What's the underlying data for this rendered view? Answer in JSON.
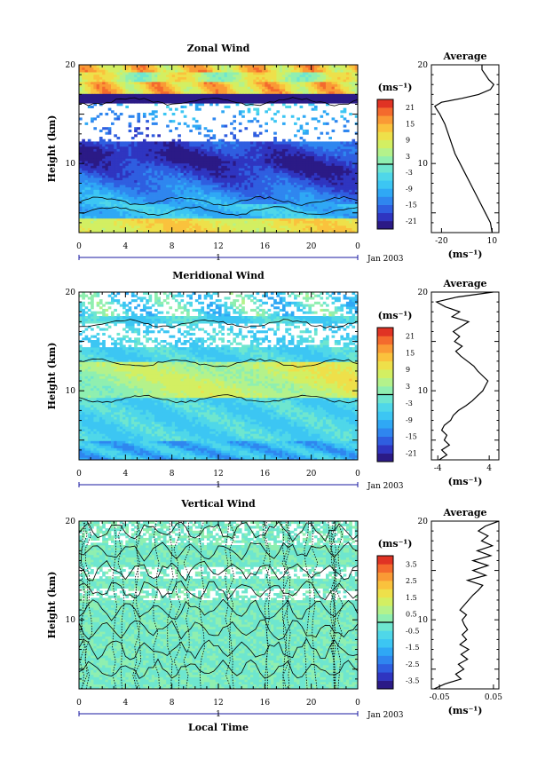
{
  "chart_data": [
    {
      "type": "heatmap",
      "title": "Zonal Wind",
      "ylabel": "Height (km)",
      "units": "(ms⁻¹)",
      "x_ticks": [
        "0",
        "4",
        "8",
        "12",
        "16",
        "20",
        "0"
      ],
      "y_ticks": [
        "10",
        "20"
      ],
      "xlim": [
        0,
        24
      ],
      "ylim": [
        3,
        20
      ],
      "day_label": "1",
      "date_label": "Jan 2003",
      "colorbar_ticks": [
        "21",
        "15",
        "9",
        "3",
        "-3",
        "-9",
        "-15",
        "-21"
      ],
      "colorbar_range": [
        -24,
        24
      ],
      "profile": {
        "title": "Average",
        "xlabel": "(ms⁻¹)",
        "x_ticks": [
          "-20",
          "10"
        ],
        "xlim": [
          -26,
          14
        ],
        "y_ticks": [
          "10",
          "20"
        ],
        "height": [
          3,
          4,
          5,
          6,
          7,
          8,
          9,
          10,
          11,
          12,
          13,
          14,
          15,
          15.8,
          16.2,
          16.6,
          17,
          17.5,
          18,
          18.5,
          19,
          19.5,
          20
        ],
        "value": [
          10,
          9,
          6,
          3,
          0,
          -3,
          -6,
          -9,
          -12,
          -14,
          -16,
          -18,
          -21,
          -24,
          -20,
          -8,
          2,
          9,
          11,
          8,
          6,
          4,
          4
        ]
      }
    },
    {
      "type": "heatmap",
      "title": "Meridional Wind",
      "ylabel": "Height (km)",
      "units": "(ms⁻¹)",
      "x_ticks": [
        "0",
        "4",
        "8",
        "12",
        "16",
        "20",
        "0"
      ],
      "y_ticks": [
        "10",
        "20"
      ],
      "xlim": [
        0,
        24
      ],
      "ylim": [
        3,
        20
      ],
      "day_label": "1",
      "date_label": "Jan 2003",
      "colorbar_ticks": [
        "21",
        "15",
        "9",
        "3",
        "-3",
        "-9",
        "-15",
        "-21"
      ],
      "colorbar_range": [
        -24,
        24
      ],
      "profile": {
        "title": "Average",
        "xlabel": "(ms⁻¹)",
        "x_ticks": [
          "-4",
          "4"
        ],
        "xlim": [
          -5,
          5.5
        ],
        "y_ticks": [
          "10",
          "20"
        ],
        "height": [
          3,
          3.5,
          4,
          4.5,
          5,
          5.5,
          6,
          6.5,
          7,
          7.5,
          8,
          8.5,
          9,
          9.5,
          10,
          10.5,
          11,
          11.5,
          12,
          12.5,
          13,
          13.5,
          14,
          14.5,
          15,
          15.5,
          16,
          16.5,
          17,
          17.5,
          18,
          18.5,
          19,
          19.5,
          20
        ],
        "value": [
          -3.8,
          -2.6,
          -3.4,
          -2.2,
          -3.0,
          -2.6,
          -3.4,
          -3.0,
          -2.0,
          -1.6,
          -0.8,
          0.4,
          1.4,
          2.2,
          3.0,
          3.4,
          3.8,
          3.0,
          2.2,
          1.6,
          0.6,
          -0.4,
          -1.2,
          -0.2,
          -1.4,
          -0.6,
          -1.6,
          -0.4,
          0.8,
          -1.8,
          -0.6,
          -2.8,
          -4.2,
          -1.0,
          4.6
        ]
      }
    },
    {
      "type": "heatmap",
      "title": "Vertical Wind",
      "xlabel": "Local Time",
      "ylabel": "Height (km)",
      "units": "(ms⁻¹)",
      "x_ticks": [
        "0",
        "4",
        "8",
        "12",
        "16",
        "20",
        "0"
      ],
      "y_ticks": [
        "10",
        "20"
      ],
      "xlim": [
        0,
        24
      ],
      "ylim": [
        3,
        20
      ],
      "day_label": "1",
      "date_label": "Jan 2003",
      "colorbar_ticks": [
        "3.5",
        "2.5",
        "1.5",
        "0.5",
        "-0.5",
        "-1.5",
        "-2.5",
        "-3.5"
      ],
      "colorbar_range": [
        -4,
        4
      ],
      "profile": {
        "title": "Average",
        "xlabel": "(ms⁻¹)",
        "x_ticks": [
          "-0.05",
          "0.05"
        ],
        "xlim": [
          -0.065,
          0.06
        ],
        "y_ticks": [
          "10",
          "20"
        ],
        "height": [
          3,
          3.5,
          4,
          4.5,
          5,
          5.5,
          6,
          6.5,
          7,
          7.5,
          8,
          8.5,
          9,
          9.5,
          10,
          10.5,
          11,
          11.5,
          12,
          12.5,
          13,
          13.5,
          14,
          14.5,
          15,
          15.5,
          16,
          16.5,
          17,
          17.5,
          18,
          18.5,
          19,
          19.5,
          20
        ],
        "value": [
          -0.06,
          -0.04,
          -0.01,
          -0.02,
          -0.005,
          -0.015,
          0.002,
          -0.01,
          0.004,
          -0.012,
          0.0,
          -0.008,
          0.002,
          -0.004,
          -0.008,
          0.0,
          -0.012,
          -0.004,
          0.004,
          0.012,
          0.022,
          0.03,
          0.002,
          0.036,
          0.012,
          0.04,
          0.012,
          0.045,
          0.02,
          0.048,
          0.028,
          0.04,
          0.022,
          0.035,
          0.06
        ]
      }
    }
  ]
}
